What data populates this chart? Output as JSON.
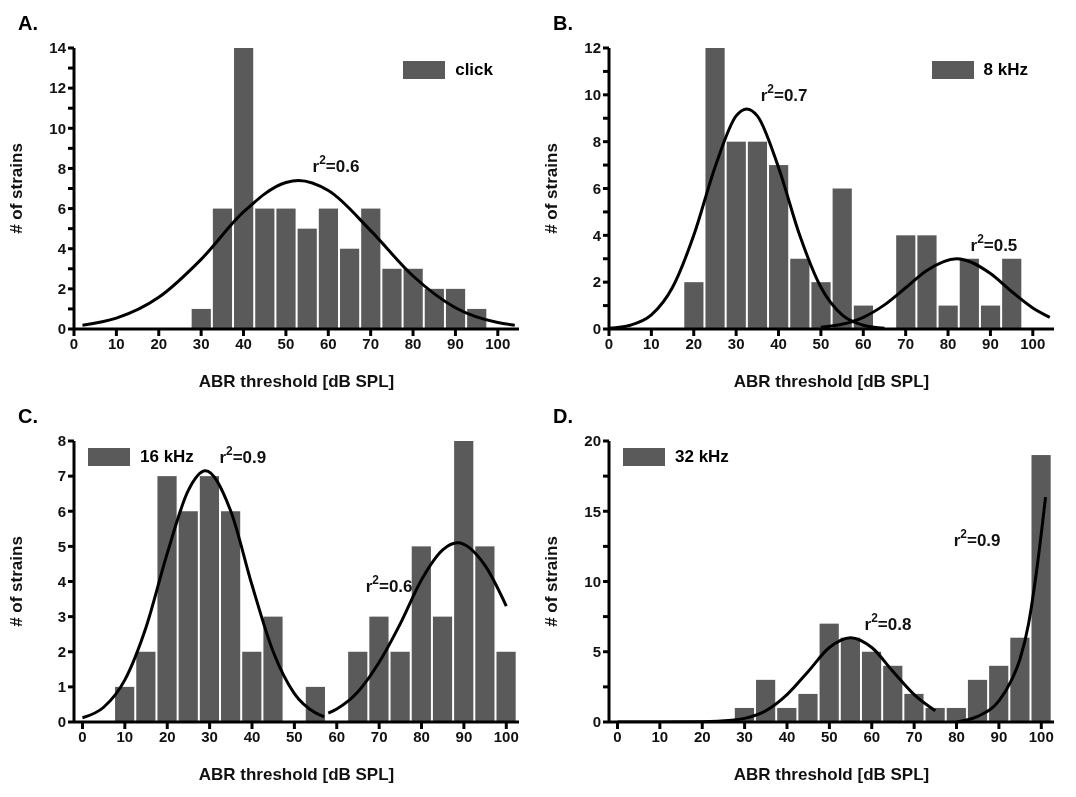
{
  "chart_data": [
    {
      "type": "histogram",
      "title": "A.",
      "xlabel": "ABR threshold [dB SPL]",
      "ylabel": "# of strains",
      "legend": "top right",
      "xlim": [
        0,
        105
      ],
      "xticks": [
        0,
        10,
        20,
        30,
        40,
        50,
        60,
        70,
        80,
        90,
        100
      ],
      "ylim": [
        0,
        14
      ],
      "yticks": [
        0,
        {
          "value": 1,
          "label": null
        },
        2,
        {
          "value": 3,
          "label": null
        },
        4,
        {
          "value": 5,
          "label": null
        },
        6,
        {
          "value": 7,
          "label": null
        },
        8,
        {
          "value": 9,
          "label": null
        },
        10,
        {
          "value": 11,
          "label": null
        },
        12,
        {
          "value": 13,
          "label": null
        },
        14
      ],
      "series": [
        {
          "type": "histogram",
          "name": "click",
          "color": "#5a5a5a",
          "bins": [
            27.5,
            32.5,
            37.5,
            42.5,
            47.5,
            52.5,
            57.5,
            62.5,
            67.5,
            72.5,
            77.5,
            82.5,
            87.5,
            92.5,
            97.5
          ],
          "values": [
            1,
            6,
            14,
            6,
            6,
            5,
            6,
            4,
            6,
            3,
            3,
            2,
            2,
            1
          ]
        },
        {
          "type": "line",
          "color": "#000000",
          "x": [
            2,
            10,
            20,
            30,
            40,
            50,
            53,
            60,
            70,
            80,
            90,
            100,
            104
          ],
          "values": [
            0.19,
            0.54,
            1.58,
            3.47,
            5.83,
            7.3,
            7.4,
            6.9,
            4.9,
            2.64,
            1.06,
            0.32,
            0.19
          ]
        }
      ],
      "annotations": [
        "r$^{2}$=0.6"
      ]
    },
    {
      "type": "histogram",
      "title": "B.",
      "xlabel": "ABR threshold [dB SPL]",
      "ylabel": "# of strains",
      "legend": "top right",
      "xlim": [
        0,
        105
      ],
      "xticks": [
        0,
        10,
        20,
        30,
        40,
        50,
        60,
        70,
        80,
        90,
        100
      ],
      "ylim": [
        0,
        12
      ],
      "yticks": [
        0,
        {
          "value": 1,
          "label": null
        },
        2,
        {
          "value": 3,
          "label": null
        },
        4,
        {
          "value": 5,
          "label": null
        },
        6,
        {
          "value": 7,
          "label": null
        },
        8,
        {
          "value": 9,
          "label": null
        },
        10,
        {
          "value": 11,
          "label": null
        },
        12
      ],
      "series": [
        {
          "type": "histogram",
          "name": "8 kHz",
          "color": "#5a5a5a",
          "bins": [
            17.5,
            22.5,
            27.5,
            32.5,
            37.5,
            42.5,
            47.5,
            52.5,
            57.5,
            62.5,
            67.5,
            72.5,
            77.5,
            82.5,
            87.5,
            92.5,
            97.5
          ],
          "values": [
            2,
            12,
            8,
            8,
            7,
            3,
            2,
            6,
            1,
            0,
            4,
            4,
            1,
            3,
            1,
            3
          ]
        },
        {
          "type": "line",
          "color": "#000000",
          "x": [
            0,
            5,
            10,
            15,
            20,
            25,
            30,
            32.5,
            35,
            40,
            45,
            50,
            55,
            60,
            65
          ],
          "values": [
            0.03,
            0.16,
            0.6,
            1.78,
            4.0,
            6.9,
            9.1,
            9.4,
            9.1,
            6.9,
            4.0,
            1.78,
            0.6,
            0.16,
            0.03
          ]
        },
        {
          "type": "line",
          "color": "#000000",
          "x": [
            50,
            55,
            60,
            65,
            70,
            75,
            82,
            90,
            95,
            100,
            104
          ],
          "values": [
            0.07,
            0.2,
            0.5,
            1.03,
            1.76,
            2.5,
            3.0,
            2.37,
            1.6,
            0.9,
            0.5
          ]
        }
      ],
      "annotations": [
        "r$^{2}$=0.7",
        "r$^{2}$=0.5"
      ]
    },
    {
      "type": "histogram",
      "title": "C.",
      "xlabel": "ABR threshold [dB SPL]",
      "ylabel": "# of strains",
      "legend": "top left",
      "xlim": [
        -2,
        103
      ],
      "xticks": [
        0,
        10,
        20,
        30,
        40,
        50,
        60,
        70,
        80,
        90,
        100
      ],
      "ylim": [
        0,
        8
      ],
      "yticks": [
        0,
        1,
        2,
        3,
        4,
        5,
        6,
        7,
        8
      ],
      "series": [
        {
          "type": "histogram",
          "name": "16 kHz",
          "color": "#5a5a5a",
          "bins": [
            7.5,
            12.5,
            17.5,
            22.5,
            27.5,
            32.5,
            37.5,
            42.5,
            47.5,
            52.5,
            57.5,
            62.5,
            67.5,
            72.5,
            77.5,
            82.5,
            87.5,
            92.5,
            97.5,
            102.5
          ],
          "values": [
            1,
            2,
            7,
            6,
            7,
            6,
            2,
            3,
            0,
            1,
            0,
            2,
            3,
            2,
            5,
            3,
            8,
            5,
            2
          ]
        },
        {
          "type": "line",
          "color": "#000000",
          "x": [
            0,
            5,
            10,
            15,
            20,
            25,
            29,
            35,
            40,
            45,
            50,
            55,
            57
          ],
          "values": [
            0.12,
            0.42,
            1.2,
            2.7,
            4.8,
            6.6,
            7.15,
            6.0,
            3.9,
            2.0,
            0.81,
            0.26,
            0.15
          ]
        },
        {
          "type": "line",
          "color": "#000000",
          "x": [
            58,
            60,
            65,
            70,
            75,
            80,
            85,
            88.5,
            95,
            100
          ],
          "values": [
            0.25,
            0.37,
            0.86,
            1.7,
            2.8,
            4.05,
            4.9,
            5.1,
            4.45,
            3.3
          ]
        }
      ],
      "annotations": [
        "r$^{2}$=0.9",
        "r$^{2}$=0.6"
      ]
    },
    {
      "type": "histogram",
      "title": "D.",
      "xlabel": "ABR threshold [dB SPL]",
      "ylabel": "# of strains",
      "legend": "top left",
      "xlim": [
        -2,
        103
      ],
      "xticks": [
        0,
        10,
        20,
        30,
        40,
        50,
        60,
        70,
        80,
        90,
        100
      ],
      "ylim": [
        0,
        20
      ],
      "yticks": [
        0,
        {
          "value": 2.5,
          "label": null
        },
        5,
        {
          "value": 7.5,
          "label": null
        },
        10,
        {
          "value": 12.5,
          "label": null
        },
        15,
        {
          "value": 17.5,
          "label": null
        },
        20
      ],
      "series": [
        {
          "type": "histogram",
          "name": "32 kHz",
          "color": "#5a5a5a",
          "bins": [
            27.5,
            32.5,
            37.5,
            42.5,
            47.5,
            52.5,
            57.5,
            62.5,
            67.5,
            72.5,
            77.5,
            82.5,
            87.5,
            92.5,
            97.5,
            102.5
          ],
          "values": [
            1,
            3,
            1,
            2,
            7,
            6,
            5,
            4,
            2,
            1,
            1,
            3,
            4,
            6,
            19
          ]
        },
        {
          "type": "line",
          "color": "#000000",
          "x": [
            0,
            10,
            20,
            27,
            30,
            35,
            40,
            45,
            50,
            55,
            60,
            65,
            70,
            75
          ],
          "values": [
            0,
            0,
            0.01,
            0.12,
            0.26,
            0.8,
            1.95,
            3.6,
            5.3,
            6.0,
            5.3,
            3.6,
            1.95,
            0.8
          ]
        },
        {
          "type": "line",
          "color": "#000000",
          "x": [
            80,
            85,
            90,
            93,
            95,
            97,
            99,
            101
          ],
          "values": [
            0,
            0.4,
            1.5,
            3,
            4.5,
            7,
            11,
            16
          ]
        }
      ],
      "annotations": [
        "r$^{2}$=0.8",
        "r$^{2}$=0.9"
      ]
    }
  ]
}
